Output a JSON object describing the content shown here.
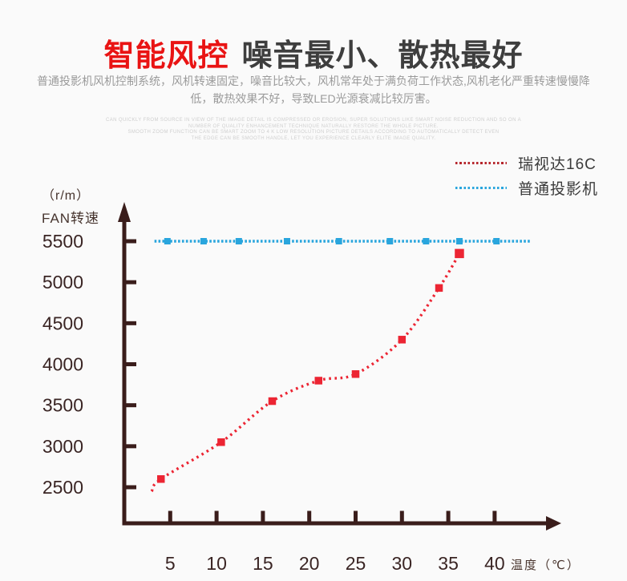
{
  "header": {
    "title_red": "智能风控",
    "title_rest": "噪音最小、散热最好",
    "subtitle": "普通投影机风机控制系统，风机转速固定，噪音比较大，风机常年处于满负荷工作状态,风机老化严重转速慢慢降低，散热效果不好，导致LED光源衰减比较厉害。"
  },
  "watermark": {
    "lines": [
      "CAN QUICKLY FROM SOURCE IN VIEW OF THE IMAGE DETAIL IS COMPRESSED OR EROSION, SUPER SOLUTIONS LIKE SMART NOISE REDUCTION AND SO ON A",
      "NUMBER OF QUALITY ENHANCEMENT TECHNIQUE NATURALLY RESTORE THE WHOLE PICTURE.",
      "SMOOTH ZOOM FUNCTION CAN BE SMART ZOOM TO 4 K LOW RESOLUTION PICTURE DETAILS ACCORDING TO AUTOMATICALLY DETECT EVEN",
      "THE EDGE CAN BE SMOOTH HANDLE, LET YOU EXPERIENCE CLEARLY ELITE IMAGE QUALITY."
    ]
  },
  "colors": {
    "title_red": "#e91414",
    "title_dark": "#3e3e3e",
    "axis": "#3a1d1b",
    "tick_label": "#3a2524",
    "series_red": "#ec2533",
    "series_blue": "#29a5dd",
    "legend_red": "#b5262c",
    "legend_blue": "#29a5dd"
  },
  "legend": {
    "items": [
      {
        "label": "瑞视达16C",
        "color": "#b5262c",
        "style": "dotted"
      },
      {
        "label": "普通投影机",
        "color": "#29a5dd",
        "style": "dotted"
      }
    ]
  },
  "chart_data": {
    "type": "line",
    "title": "",
    "xlabel": "温度（℃）",
    "ylabel": "FAN转速",
    "ylabel_unit": "（r/m）",
    "xlim": [
      0,
      45
    ],
    "ylim": [
      2200,
      5800
    ],
    "xticks": [
      5,
      10,
      15,
      20,
      25,
      30,
      35,
      40
    ],
    "yticks": [
      2500,
      3000,
      3500,
      4000,
      4500,
      5000,
      5500
    ],
    "grid": false,
    "legend_position": "top-right",
    "series": [
      {
        "name": "瑞视达16C",
        "color": "#ec2533",
        "marker": "square",
        "line_style": "dotted",
        "lead_in": {
          "x": 3,
          "y": 2450
        },
        "x": [
          4,
          10.5,
          16,
          21,
          25,
          30,
          34,
          36.2
        ],
        "y": [
          2600,
          3050,
          3550,
          3800,
          3880,
          4300,
          4930,
          5350
        ]
      },
      {
        "name": "普通投影机",
        "color": "#29a5dd",
        "marker": "square",
        "line_style": "dotted",
        "constant_value": 5500,
        "x_start": 3.3,
        "x_end": 43.8,
        "marker_x": [
          4.7,
          8.6,
          12.4,
          17.6,
          23.2,
          28.7,
          32.6,
          36.2,
          40.2
        ]
      }
    ]
  }
}
